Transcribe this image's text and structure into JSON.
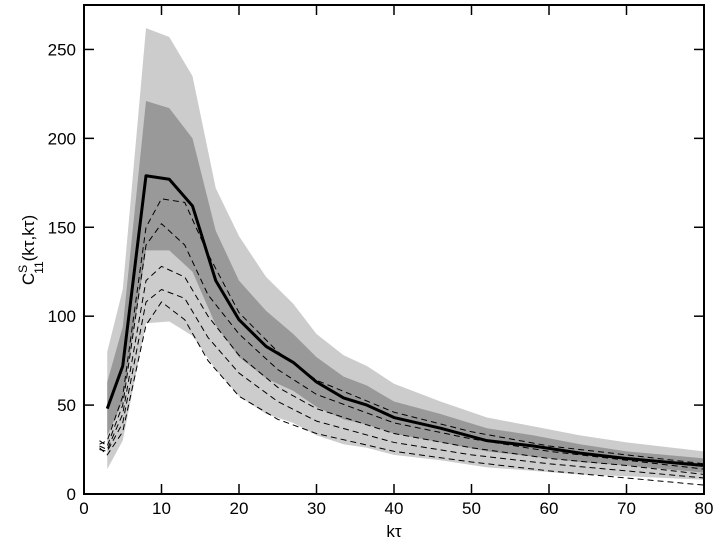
{
  "chart_data": {
    "type": "line",
    "xlabel": "kτ",
    "ylabel": {
      "main": "C",
      "sup": "S",
      "sub": "11",
      "args": "(kτ,kτ)"
    },
    "xlim": [
      0,
      80
    ],
    "xticks": [
      0,
      10,
      20,
      30,
      40,
      50,
      60,
      70,
      80
    ],
    "ylim": [
      0,
      275
    ],
    "yticks": [
      0,
      50,
      100,
      150,
      200,
      250
    ],
    "bands": [
      {
        "color": "#cccccc",
        "x": [
          3,
          5,
          8,
          11,
          14,
          17,
          20,
          23.5,
          27,
          30,
          33.5,
          36.5,
          40,
          46,
          52,
          58,
          64,
          70,
          80
        ],
        "upper": [
          80,
          115,
          262,
          257,
          235,
          172,
          145,
          122,
          107,
          90,
          78,
          72,
          62,
          52,
          43,
          38,
          33,
          29,
          24
        ],
        "lower": [
          14,
          30,
          96,
          97,
          89,
          70,
          55,
          45,
          40,
          33,
          28,
          26,
          22,
          19,
          15,
          13,
          11,
          10,
          8
        ]
      },
      {
        "color": "#999999",
        "x": [
          3,
          5,
          8,
          11,
          14,
          17,
          20,
          23.5,
          27,
          30,
          33.5,
          36.5,
          40,
          46,
          52,
          58,
          64,
          70,
          80
        ],
        "upper": [
          63,
          94,
          221,
          217,
          200,
          148,
          120,
          103,
          90,
          77,
          66,
          61,
          52,
          45,
          37,
          33,
          28,
          24,
          20
        ],
        "lower": [
          33,
          52,
          137,
          137,
          125,
          95,
          77,
          65,
          58,
          49,
          42,
          39,
          34,
          29,
          24,
          21,
          18,
          16,
          12
        ]
      }
    ],
    "series": [
      {
        "color": "#000000",
        "dash": true,
        "width": 1,
        "x": [
          2,
          3,
          5,
          8,
          10,
          13,
          16,
          20,
          25,
          30,
          40,
          50,
          60,
          70,
          80
        ],
        "values": [
          28,
          30,
          55,
          150,
          166,
          164,
          135,
          102,
          80,
          64,
          46,
          35,
          27,
          22,
          17
        ]
      },
      {
        "color": "#000000",
        "dash": true,
        "width": 1,
        "x": [
          2,
          3,
          5,
          8,
          10,
          13,
          16,
          20,
          25,
          30,
          40,
          50,
          60,
          70,
          80
        ],
        "values": [
          30,
          27,
          50,
          140,
          152,
          140,
          112,
          90,
          70,
          56,
          40,
          31,
          24,
          19,
          14
        ]
      },
      {
        "color": "#000000",
        "dash": true,
        "width": 1,
        "x": [
          2,
          3,
          5,
          8,
          10,
          13,
          16,
          20,
          25,
          30,
          40,
          50,
          60,
          70,
          80
        ],
        "values": [
          27,
          25,
          45,
          120,
          128,
          122,
          100,
          78,
          60,
          48,
          34,
          26,
          20,
          16,
          11
        ]
      },
      {
        "color": "#000000",
        "dash": true,
        "width": 1,
        "x": [
          2,
          3,
          5,
          8,
          10,
          13,
          16,
          20,
          25,
          30,
          40,
          50,
          60,
          70,
          80
        ],
        "values": [
          25,
          24,
          40,
          108,
          115,
          110,
          88,
          68,
          52,
          41,
          29,
          22,
          17,
          13,
          9
        ]
      },
      {
        "color": "#000000",
        "dash": true,
        "width": 1,
        "x": [
          2,
          3,
          5,
          8,
          10,
          13,
          16,
          20,
          25,
          30,
          40,
          50,
          60,
          70,
          80
        ],
        "values": [
          26,
          22,
          35,
          95,
          108,
          98,
          75,
          55,
          42,
          34,
          24,
          18,
          13,
          9,
          5
        ]
      },
      {
        "color": "#000000",
        "dash": false,
        "width": 3,
        "x": [
          3,
          5,
          8,
          11,
          14,
          17,
          20,
          23.5,
          27,
          30,
          33.5,
          36.5,
          40,
          46,
          52,
          58,
          64,
          70,
          80
        ],
        "values": [
          48,
          72,
          179,
          177,
          162,
          120,
          98,
          83,
          74,
          63,
          54,
          50,
          43,
          37,
          30,
          27,
          23,
          20,
          16
        ]
      }
    ]
  }
}
